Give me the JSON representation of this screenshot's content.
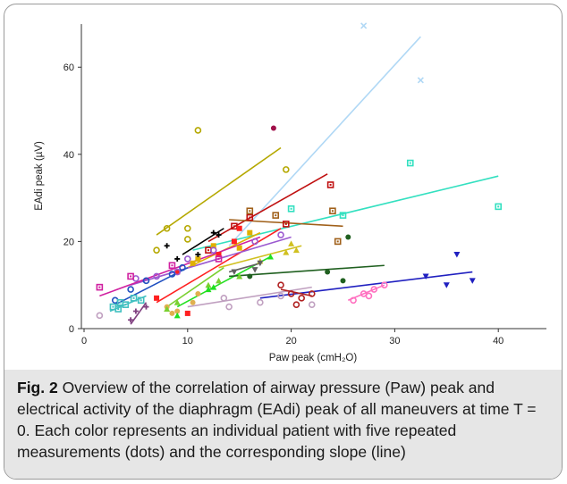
{
  "figure": {
    "caption_label": "Fig. 2",
    "caption_text": " Overview of the correlation of airway pressure (Paw) peak and electrical activity of the diaphragm (EAdi) peak of all maneuvers at time T = 0. Each color represents an individual patient with five repeated measurements (dots) and the corresponding slope (line)"
  },
  "chart_data": {
    "type": "scatter",
    "xlabel": "Paw peak (cmH₂O)",
    "ylabel": "EAdi peak (µV)",
    "xlim": [
      0,
      45
    ],
    "ylim": [
      0,
      70
    ],
    "xticks": [
      "0",
      "10",
      "20",
      "30",
      "40"
    ],
    "yticks": [
      "0",
      "20",
      "40",
      "60"
    ],
    "grid": false,
    "legend": "none",
    "series": [
      {
        "color": "#b0d8f5",
        "marker": "x",
        "points": [
          [
            27,
            69.5
          ],
          [
            32.5,
            57
          ]
        ],
        "slope": [
          [
            14,
            19
          ],
          [
            32.5,
            67
          ]
        ]
      },
      {
        "color": "#33e0c0",
        "marker": "square-open",
        "points": [
          [
            31.5,
            38
          ],
          [
            40,
            28
          ],
          [
            20,
            27.5
          ],
          [
            25,
            26
          ]
        ],
        "slope": [
          [
            10.5,
            18
          ],
          [
            40,
            35
          ]
        ]
      },
      {
        "color": "#b5a800",
        "marker": "circle-open",
        "points": [
          [
            11,
            45.5
          ],
          [
            19.5,
            36.5
          ],
          [
            10,
            23
          ],
          [
            8,
            23
          ],
          [
            10,
            20.5
          ],
          [
            7,
            18
          ]
        ],
        "slope": [
          [
            7,
            21.5
          ],
          [
            19,
            41.5
          ]
        ]
      },
      {
        "color": "#a0104a",
        "marker": "circle",
        "points": [
          [
            18.3,
            46
          ]
        ],
        "slope": []
      },
      {
        "color": "#c01010",
        "marker": "square-open",
        "points": [
          [
            23.8,
            33
          ],
          [
            16,
            25.5
          ],
          [
            19.5,
            24
          ],
          [
            14.5,
            23.5
          ],
          [
            12,
            18
          ]
        ],
        "slope": [
          [
            12,
            20
          ],
          [
            23.5,
            35.5
          ]
        ]
      },
      {
        "color": "#a0601a",
        "marker": "square-open",
        "points": [
          [
            24,
            27
          ],
          [
            16,
            27
          ],
          [
            18.5,
            26
          ],
          [
            24.5,
            20
          ]
        ],
        "slope": [
          [
            14,
            25
          ],
          [
            25,
            23.5
          ]
        ]
      },
      {
        "color": "#ff2020",
        "marker": "square",
        "points": [
          [
            7,
            7
          ],
          [
            9,
            13
          ],
          [
            13,
            17
          ],
          [
            14.5,
            20
          ],
          [
            15,
            23
          ],
          [
            10,
            3.5
          ]
        ],
        "slope": [
          [
            7,
            6
          ],
          [
            19,
            23
          ]
        ]
      },
      {
        "color": "#e0b000",
        "marker": "square",
        "points": [
          [
            10.5,
            15
          ],
          [
            11,
            16
          ],
          [
            12.5,
            19
          ],
          [
            15,
            18.5
          ],
          [
            16,
            22
          ]
        ],
        "slope": [
          [
            10,
            14
          ],
          [
            17,
            22
          ]
        ]
      },
      {
        "color": "#9b59d0",
        "marker": "circle-open",
        "points": [
          [
            5,
            11.5
          ],
          [
            7,
            12
          ],
          [
            9,
            13
          ],
          [
            10,
            16
          ],
          [
            12.5,
            18
          ],
          [
            16.5,
            20
          ],
          [
            19,
            21.5
          ]
        ],
        "slope": [
          [
            4.5,
            10
          ],
          [
            20,
            21
          ]
        ]
      },
      {
        "color": "#d020a0",
        "marker": "square-open",
        "points": [
          [
            1.5,
            9.5
          ],
          [
            4.5,
            12
          ],
          [
            8.5,
            14.5
          ],
          [
            13,
            16
          ]
        ],
        "slope": [
          [
            1.5,
            7.5
          ],
          [
            17,
            21
          ]
        ]
      },
      {
        "color": "#2050c0",
        "marker": "circle-open",
        "points": [
          [
            3,
            6.5
          ],
          [
            4.5,
            9
          ],
          [
            6,
            11
          ],
          [
            8.5,
            12.5
          ],
          [
            9.5,
            14
          ]
        ],
        "slope": [
          [
            3,
            5.5
          ],
          [
            10,
            14
          ]
        ]
      },
      {
        "color": "#40c0c0",
        "marker": "square-open",
        "points": [
          [
            2.8,
            5
          ],
          [
            3.3,
            4.5
          ],
          [
            3.5,
            6
          ],
          [
            4,
            5.5
          ],
          [
            5.5,
            6.5
          ],
          [
            4.8,
            7
          ]
        ],
        "slope": [
          [
            2.5,
            4
          ],
          [
            6,
            7.5
          ]
        ]
      },
      {
        "color": "#c0a0c0",
        "marker": "circle-open",
        "points": [
          [
            1.5,
            3
          ],
          [
            14,
            5
          ],
          [
            13.5,
            7
          ],
          [
            17,
            6
          ],
          [
            19,
            7.5
          ],
          [
            22,
            5.5
          ]
        ],
        "slope": [
          [
            10,
            5
          ],
          [
            22,
            9.5
          ]
        ]
      },
      {
        "color": "#e0b050",
        "marker": "circle",
        "points": [
          [
            8,
            5
          ],
          [
            9,
            4
          ],
          [
            8.5,
            3.5
          ],
          [
            10.5,
            6
          ],
          [
            11,
            8
          ]
        ],
        "slope": []
      },
      {
        "color": "#7ad030",
        "marker": "triangle",
        "points": [
          [
            8,
            4.5
          ],
          [
            9,
            6
          ],
          [
            12,
            10
          ],
          [
            13,
            11
          ],
          [
            15,
            12
          ]
        ],
        "slope": [
          [
            8,
            5
          ],
          [
            13.5,
            14
          ]
        ]
      },
      {
        "color": "#20e020",
        "marker": "triangle",
        "points": [
          [
            9,
            3
          ],
          [
            12,
            9
          ],
          [
            12.5,
            9.5
          ],
          [
            18,
            16.5
          ]
        ],
        "slope": [
          [
            9,
            5
          ],
          [
            18,
            16.5
          ]
        ]
      },
      {
        "color": "#d0c020",
        "marker": "triangle",
        "points": [
          [
            17,
            15.5
          ],
          [
            19.5,
            17.5
          ],
          [
            20.5,
            18
          ],
          [
            20,
            19.5
          ]
        ],
        "slope": [
          [
            13,
            14
          ],
          [
            21,
            19
          ]
        ]
      },
      {
        "color": "#206020",
        "marker": "circle",
        "points": [
          [
            16,
            12
          ],
          [
            23.5,
            13
          ],
          [
            25.5,
            21
          ],
          [
            25,
            11
          ]
        ],
        "slope": [
          [
            14,
            12
          ],
          [
            29,
            14.5
          ]
        ]
      },
      {
        "color": "#2020c0",
        "marker": "triangle-down",
        "points": [
          [
            33,
            12
          ],
          [
            35,
            10
          ],
          [
            36,
            17
          ],
          [
            37.5,
            11
          ]
        ],
        "slope": [
          [
            17,
            7
          ],
          [
            37.5,
            13
          ]
        ]
      },
      {
        "color": "#ff70c0",
        "marker": "circle-open",
        "points": [
          [
            26,
            6.5
          ],
          [
            27,
            8
          ],
          [
            27.5,
            7.5
          ],
          [
            28,
            9
          ],
          [
            29,
            10
          ]
        ],
        "slope": [
          [
            25.5,
            6.5
          ],
          [
            29,
            10
          ]
        ]
      },
      {
        "color": "#b02020",
        "marker": "circle-open",
        "points": [
          [
            19,
            10
          ],
          [
            20,
            8
          ],
          [
            21,
            7
          ],
          [
            22,
            8
          ],
          [
            20.5,
            5.5
          ]
        ],
        "slope": [
          [
            19,
            9
          ],
          [
            22,
            7.5
          ]
        ]
      },
      {
        "color": "#804080",
        "marker": "plus",
        "points": [
          [
            4.5,
            2
          ],
          [
            5,
            4
          ],
          [
            6,
            5
          ]
        ],
        "slope": [
          [
            4.5,
            1
          ],
          [
            6,
            6
          ]
        ]
      },
      {
        "color": "#000000",
        "marker": "plus",
        "points": [
          [
            8,
            19
          ],
          [
            9,
            16
          ],
          [
            11,
            17
          ],
          [
            12.5,
            22
          ],
          [
            13,
            21.5
          ]
        ],
        "slope": [
          [
            9.5,
            17
          ],
          [
            13.5,
            23
          ]
        ]
      },
      {
        "color": "#606060",
        "marker": "triangle-down",
        "points": [
          [
            14.5,
            13
          ],
          [
            16.5,
            13.5
          ],
          [
            17,
            15
          ]
        ],
        "slope": [
          [
            14,
            13
          ],
          [
            17,
            15
          ]
        ]
      }
    ]
  }
}
